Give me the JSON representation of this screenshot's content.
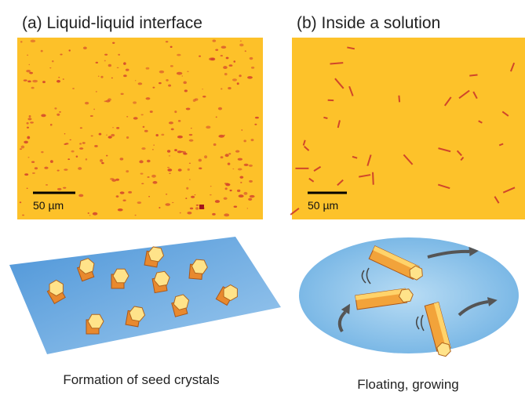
{
  "panels": [
    {
      "title": "(a) Liquid-liquid interface",
      "scale_bar": "50 µm",
      "caption": "Formation of seed crystals"
    },
    {
      "title": "(b) Inside a solution",
      "scale_bar": "50 µm",
      "caption": "Floating, growing"
    }
  ]
}
